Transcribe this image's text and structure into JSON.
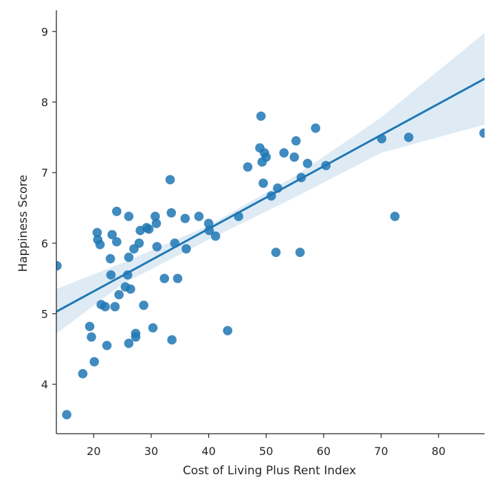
{
  "chart_data": {
    "type": "scatter",
    "title": "",
    "xlabel": "Cost of Living Plus Rent Index",
    "ylabel": "Happiness Score",
    "xlim": [
      13.5,
      88
    ],
    "ylim": [
      3.3,
      9.3
    ],
    "xticks": [
      20,
      30,
      40,
      50,
      60,
      70,
      80
    ],
    "yticks": [
      4,
      5,
      6,
      7,
      8,
      9
    ],
    "grid": false,
    "colors": {
      "points": "#1f77b4",
      "line": "#1f77b4",
      "band": "#1f77b4"
    },
    "regression": {
      "x_range": [
        13.5,
        88
      ],
      "y_at_start": 5.03,
      "y_at_end": 8.33,
      "ci_upper": [
        [
          13.5,
          5.35
        ],
        [
          25,
          5.72
        ],
        [
          40,
          6.25
        ],
        [
          55,
          6.95
        ],
        [
          70,
          7.78
        ],
        [
          88,
          8.98
        ]
      ],
      "ci_lower": [
        [
          13.5,
          4.72
        ],
        [
          25,
          5.42
        ],
        [
          40,
          6.05
        ],
        [
          55,
          6.65
        ],
        [
          70,
          7.28
        ],
        [
          88,
          7.68
        ]
      ]
    },
    "series": [
      {
        "name": "countries",
        "points": [
          [
            13.6,
            5.68
          ],
          [
            15.3,
            3.57
          ],
          [
            18.1,
            4.15
          ],
          [
            19.3,
            4.82
          ],
          [
            19.6,
            4.67
          ],
          [
            20.1,
            4.32
          ],
          [
            20.6,
            6.15
          ],
          [
            20.7,
            6.05
          ],
          [
            21.1,
            5.98
          ],
          [
            21.3,
            5.13
          ],
          [
            22.0,
            5.1
          ],
          [
            22.3,
            4.55
          ],
          [
            22.9,
            5.78
          ],
          [
            23.0,
            5.55
          ],
          [
            23.2,
            6.12
          ],
          [
            23.7,
            5.1
          ],
          [
            24.0,
            6.45
          ],
          [
            24.0,
            6.02
          ],
          [
            24.4,
            5.27
          ],
          [
            25.5,
            5.38
          ],
          [
            25.9,
            5.55
          ],
          [
            26.1,
            5.8
          ],
          [
            26.1,
            6.38
          ],
          [
            26.1,
            4.58
          ],
          [
            26.4,
            5.35
          ],
          [
            27.0,
            5.92
          ],
          [
            27.3,
            4.72
          ],
          [
            27.3,
            4.67
          ],
          [
            27.9,
            6.0
          ],
          [
            28.1,
            6.18
          ],
          [
            28.7,
            5.12
          ],
          [
            29.2,
            6.22
          ],
          [
            29.6,
            6.2
          ],
          [
            30.3,
            4.8
          ],
          [
            30.7,
            6.38
          ],
          [
            30.9,
            6.28
          ],
          [
            31.0,
            5.95
          ],
          [
            32.3,
            5.5
          ],
          [
            33.3,
            6.9
          ],
          [
            33.5,
            6.43
          ],
          [
            33.6,
            4.63
          ],
          [
            34.1,
            6.0
          ],
          [
            34.6,
            5.5
          ],
          [
            35.9,
            6.35
          ],
          [
            36.1,
            5.92
          ],
          [
            38.3,
            6.38
          ],
          [
            40.0,
            6.28
          ],
          [
            40.1,
            6.18
          ],
          [
            41.2,
            6.1
          ],
          [
            43.3,
            4.76
          ],
          [
            45.2,
            6.38
          ],
          [
            46.8,
            7.08
          ],
          [
            48.9,
            7.35
          ],
          [
            49.1,
            7.8
          ],
          [
            49.3,
            7.15
          ],
          [
            49.5,
            6.85
          ],
          [
            49.7,
            7.28
          ],
          [
            50.0,
            7.22
          ],
          [
            50.9,
            6.67
          ],
          [
            51.7,
            5.87
          ],
          [
            52.0,
            6.78
          ],
          [
            53.1,
            7.28
          ],
          [
            54.9,
            7.22
          ],
          [
            55.2,
            7.45
          ],
          [
            55.9,
            5.87
          ],
          [
            56.1,
            6.93
          ],
          [
            57.2,
            7.13
          ],
          [
            58.6,
            7.63
          ],
          [
            60.4,
            7.1
          ],
          [
            70.1,
            7.48
          ],
          [
            72.4,
            6.38
          ],
          [
            74.8,
            7.5
          ],
          [
            87.9,
            7.56
          ]
        ]
      }
    ]
  }
}
